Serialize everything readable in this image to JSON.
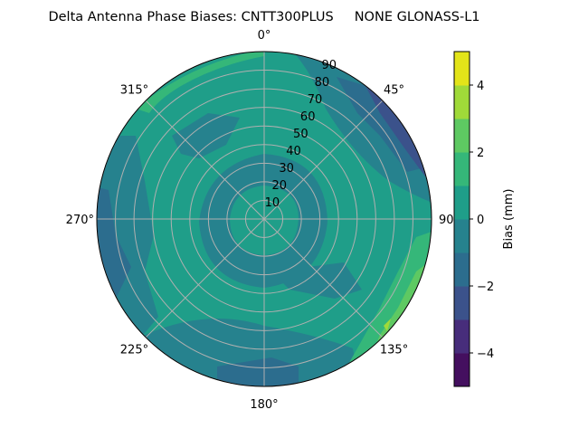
{
  "chart_data": {
    "type": "contour",
    "projection": "polar",
    "title": "Delta Antenna Phase Biases: CNTT300PLUS     NONE GLONASS-L1",
    "theta_direction": "clockwise",
    "theta_zero": "top",
    "theta_ticks": [
      "0°",
      "45°",
      "90°",
      "135°",
      "180°",
      "225°",
      "270°",
      "315°"
    ],
    "theta_tick_values": [
      0,
      45,
      90,
      135,
      180,
      225,
      270,
      315
    ],
    "r_ticks": [
      "10",
      "20",
      "30",
      "40",
      "50",
      "60",
      "70",
      "80",
      "90"
    ],
    "r_tick_values": [
      10,
      20,
      30,
      40,
      50,
      60,
      70,
      80,
      90
    ],
    "rlim": [
      0,
      90
    ],
    "grid": true,
    "colorbar": {
      "label": "Bias (mm)",
      "levels": [
        -5,
        -4,
        -3,
        -2,
        -1,
        0,
        1,
        2,
        3,
        4,
        5
      ],
      "ticks": [
        4,
        2,
        0,
        -2,
        -4
      ],
      "tick_labels": [
        "4",
        "2",
        "0",
        "−2",
        "−4"
      ],
      "colors": [
        "#440f5f",
        "#472d7b",
        "#3b528b",
        "#2c6d8e",
        "#26828e",
        "#1f9e89",
        "#35b779",
        "#5ec962",
        "#a0da39",
        "#e3e419"
      ],
      "placement": "right"
    }
  }
}
